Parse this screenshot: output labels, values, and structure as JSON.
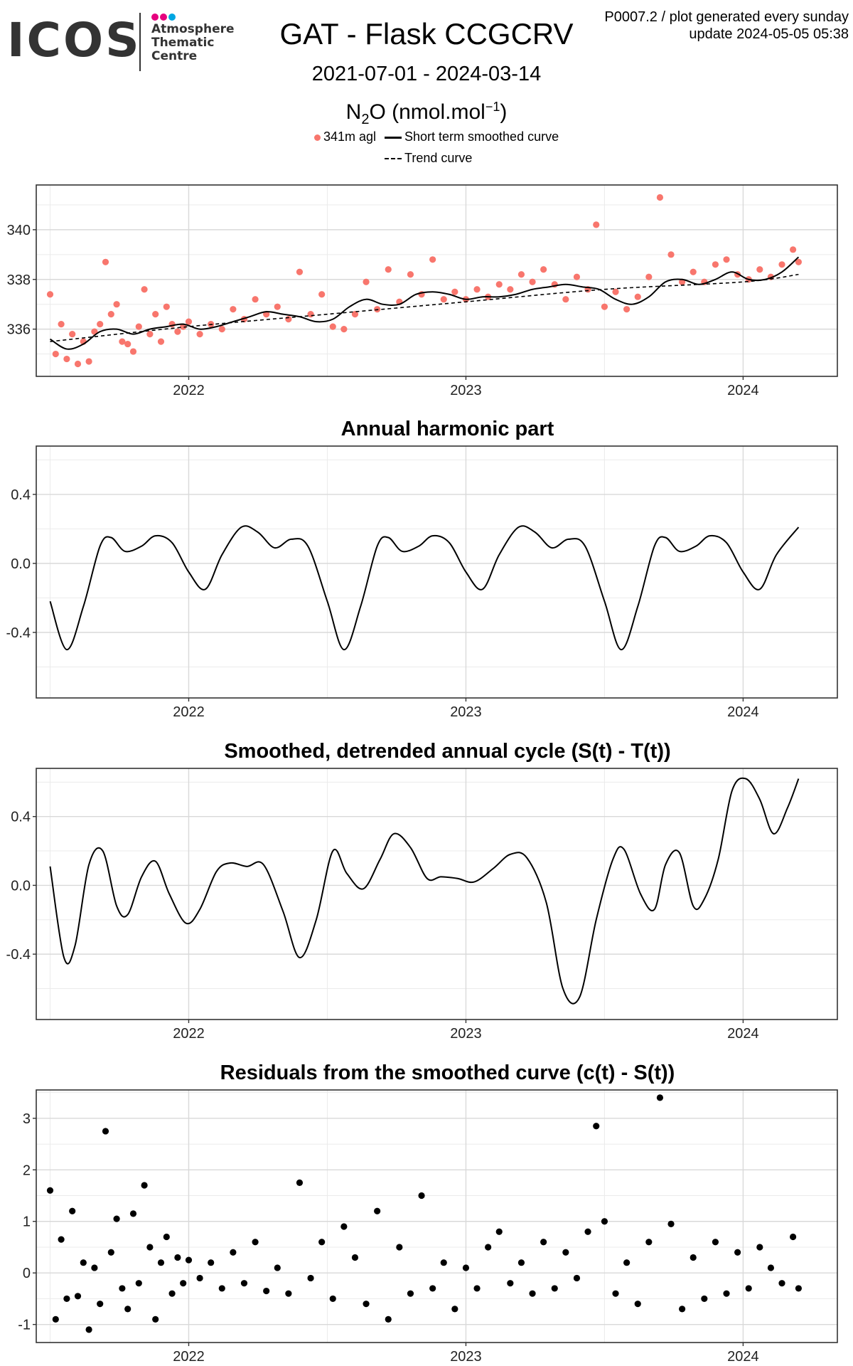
{
  "logo": {
    "wordmark": "ICOS",
    "lines": [
      "Atmosphere",
      "Thematic",
      "Centre"
    ],
    "dot_colors": [
      "#e6007e",
      "#e6007e",
      "#00a6e2"
    ]
  },
  "header": {
    "title": "GAT - Flask CCGCRV",
    "date_range": "2021-07-01 - 2024-03-14",
    "species_main": "N",
    "species_sub": "2",
    "species_o": "O (nmol.mol",
    "species_sup": "−1",
    "species_end": ")",
    "corner_line1": "P0007.2 / plot generated every sunday",
    "corner_line2": "update  2024-05-05 05:38"
  },
  "legend": {
    "points_label": "341m agl",
    "smooth_label": "Short term smoothed curve",
    "trend_label": "Trend curve",
    "point_color": "#f8766d"
  },
  "chart_data": [
    {
      "type": "scatter",
      "title": "",
      "xlabel": "",
      "ylabel": "",
      "x_ticks": [
        "2022",
        "2023",
        "2024"
      ],
      "y_ticks": [
        336,
        338,
        340
      ],
      "xlim": [
        2021.45,
        2024.34
      ],
      "ylim": [
        334.1,
        341.8
      ],
      "point_color": "#f8766d",
      "series": [
        {
          "name": "341m agl",
          "style": "points",
          "x": [
            2021.5,
            2021.52,
            2021.54,
            2021.56,
            2021.58,
            2021.6,
            2021.62,
            2021.64,
            2021.66,
            2021.68,
            2021.7,
            2021.72,
            2021.74,
            2021.76,
            2021.78,
            2021.8,
            2021.82,
            2021.84,
            2021.86,
            2021.88,
            2021.9,
            2021.92,
            2021.94,
            2021.96,
            2021.98,
            2022.0,
            2022.04,
            2022.08,
            2022.12,
            2022.16,
            2022.2,
            2022.24,
            2022.28,
            2022.32,
            2022.36,
            2022.4,
            2022.44,
            2022.48,
            2022.52,
            2022.56,
            2022.6,
            2022.64,
            2022.68,
            2022.72,
            2022.76,
            2022.8,
            2022.84,
            2022.88,
            2022.92,
            2022.96,
            2023.0,
            2023.04,
            2023.08,
            2023.12,
            2023.16,
            2023.2,
            2023.24,
            2023.28,
            2023.32,
            2023.36,
            2023.4,
            2023.44,
            2023.47,
            2023.5,
            2023.54,
            2023.58,
            2023.62,
            2023.66,
            2023.7,
            2023.74,
            2023.78,
            2023.82,
            2023.86,
            2023.9,
            2023.94,
            2023.98,
            2024.02,
            2024.06,
            2024.1,
            2024.14,
            2024.18,
            2024.2
          ],
          "y": [
            337.4,
            335.0,
            336.2,
            334.8,
            335.8,
            334.6,
            335.5,
            334.7,
            335.9,
            336.2,
            338.7,
            336.6,
            337.0,
            335.5,
            335.4,
            335.1,
            336.1,
            337.6,
            335.8,
            336.6,
            335.5,
            336.9,
            336.2,
            335.9,
            336.1,
            336.3,
            335.8,
            336.2,
            336.0,
            336.8,
            336.4,
            337.2,
            336.6,
            336.9,
            336.4,
            338.3,
            336.6,
            337.4,
            336.1,
            336.0,
            336.6,
            337.9,
            336.8,
            338.4,
            337.1,
            338.2,
            337.4,
            338.8,
            337.2,
            337.5,
            337.2,
            337.6,
            337.3,
            337.8,
            337.6,
            338.2,
            337.9,
            338.4,
            337.8,
            337.2,
            338.1,
            337.6,
            340.2,
            336.9,
            337.5,
            336.8,
            337.3,
            338.1,
            341.3,
            339.0,
            337.9,
            338.3,
            337.9,
            338.6,
            338.8,
            338.2,
            338.0,
            338.4,
            338.1,
            338.6,
            339.2,
            338.7
          ]
        },
        {
          "name": "Short term smoothed curve",
          "style": "solid",
          "x": [
            2021.5,
            2021.56,
            2021.62,
            2021.68,
            2021.74,
            2021.8,
            2021.86,
            2021.92,
            2021.98,
            2022.04,
            2022.1,
            2022.16,
            2022.22,
            2022.28,
            2022.34,
            2022.4,
            2022.46,
            2022.52,
            2022.58,
            2022.64,
            2022.7,
            2022.76,
            2022.82,
            2022.88,
            2022.94,
            2023.0,
            2023.06,
            2023.12,
            2023.18,
            2023.24,
            2023.3,
            2023.36,
            2023.42,
            2023.48,
            2023.54,
            2023.6,
            2023.66,
            2023.72,
            2023.78,
            2023.84,
            2023.9,
            2023.96,
            2024.02,
            2024.08,
            2024.14,
            2024.2
          ],
          "y": [
            335.6,
            335.2,
            335.4,
            335.9,
            336.0,
            335.8,
            336.0,
            336.1,
            336.2,
            336.0,
            336.1,
            336.3,
            336.5,
            336.7,
            336.6,
            336.5,
            336.3,
            336.4,
            336.9,
            337.2,
            337.0,
            337.0,
            337.4,
            337.5,
            337.4,
            337.2,
            337.3,
            337.3,
            337.4,
            337.6,
            337.7,
            337.8,
            337.7,
            337.6,
            337.2,
            337.0,
            337.3,
            337.9,
            338.0,
            337.8,
            338.0,
            338.3,
            338.0,
            338.0,
            338.3,
            338.9
          ]
        },
        {
          "name": "Trend curve",
          "style": "dashed",
          "x": [
            2021.5,
            2022.0,
            2022.5,
            2023.0,
            2023.5,
            2024.0,
            2024.2
          ],
          "y": [
            335.5,
            336.1,
            336.6,
            337.1,
            337.6,
            337.9,
            338.2
          ]
        }
      ]
    },
    {
      "type": "line",
      "title": "Annual harmonic part",
      "xlabel": "",
      "ylabel": "",
      "x_ticks": [
        "2022",
        "2023",
        "2024"
      ],
      "y_ticks": [
        -0.4,
        0.0,
        0.4
      ],
      "xlim": [
        2021.45,
        2024.34
      ],
      "ylim": [
        -0.78,
        0.68
      ],
      "series": [
        {
          "name": "",
          "style": "solid",
          "x": [
            2021.5,
            2021.56,
            2021.62,
            2021.68,
            2021.72,
            2021.77,
            2021.83,
            2021.88,
            2021.94,
            2022.0,
            2022.06,
            2022.12,
            2022.19,
            2022.25,
            2022.31,
            2022.37,
            2022.43,
            2022.5,
            2022.56,
            2022.62,
            2022.68,
            2022.72,
            2022.77,
            2022.83,
            2022.88,
            2022.94,
            2023.0,
            2023.06,
            2023.12,
            2023.19,
            2023.25,
            2023.31,
            2023.37,
            2023.43,
            2023.5,
            2023.56,
            2023.62,
            2023.68,
            2023.72,
            2023.77,
            2023.83,
            2023.88,
            2023.94,
            2024.0,
            2024.06,
            2024.12,
            2024.2
          ],
          "y": [
            -0.22,
            -0.5,
            -0.25,
            0.1,
            0.15,
            0.07,
            0.1,
            0.16,
            0.12,
            -0.05,
            -0.15,
            0.05,
            0.21,
            0.18,
            0.09,
            0.14,
            0.1,
            -0.22,
            -0.5,
            -0.25,
            0.1,
            0.15,
            0.07,
            0.1,
            0.16,
            0.12,
            -0.05,
            -0.15,
            0.05,
            0.21,
            0.18,
            0.09,
            0.14,
            0.1,
            -0.22,
            -0.5,
            -0.25,
            0.1,
            0.15,
            0.07,
            0.1,
            0.16,
            0.12,
            -0.05,
            -0.15,
            0.05,
            0.21
          ]
        }
      ]
    },
    {
      "type": "line",
      "title": "Smoothed, detrended annual cycle (S(t) - T(t))",
      "xlabel": "",
      "ylabel": "",
      "x_ticks": [
        "2022",
        "2023",
        "2024"
      ],
      "y_ticks": [
        -0.4,
        0.0,
        0.4
      ],
      "xlim": [
        2021.45,
        2024.34
      ],
      "ylim": [
        -0.78,
        0.68
      ],
      "series": [
        {
          "name": "",
          "style": "solid",
          "x": [
            2021.5,
            2021.55,
            2021.59,
            2021.64,
            2021.69,
            2021.74,
            2021.78,
            2021.83,
            2021.88,
            2021.93,
            2021.99,
            2022.04,
            2022.1,
            2022.15,
            2022.21,
            2022.27,
            2022.34,
            2022.4,
            2022.46,
            2022.52,
            2022.57,
            2022.63,
            2022.69,
            2022.74,
            2022.8,
            2022.86,
            2022.91,
            2022.97,
            2023.03,
            2023.1,
            2023.16,
            2023.22,
            2023.29,
            2023.35,
            2023.41,
            2023.47,
            2023.53,
            2023.57,
            2023.63,
            2023.68,
            2023.72,
            2023.77,
            2023.82,
            2023.86,
            2023.91,
            2023.96,
            2024.01,
            2024.06,
            2024.11,
            2024.16,
            2024.2
          ],
          "y": [
            0.11,
            -0.42,
            -0.35,
            0.12,
            0.2,
            -0.12,
            -0.17,
            0.05,
            0.14,
            -0.05,
            -0.22,
            -0.14,
            0.08,
            0.13,
            0.11,
            0.12,
            -0.15,
            -0.42,
            -0.2,
            0.2,
            0.07,
            -0.02,
            0.15,
            0.3,
            0.22,
            0.04,
            0.05,
            0.04,
            0.02,
            0.1,
            0.18,
            0.16,
            -0.1,
            -0.6,
            -0.65,
            -0.2,
            0.15,
            0.21,
            -0.05,
            -0.14,
            0.12,
            0.19,
            -0.12,
            -0.08,
            0.15,
            0.55,
            0.62,
            0.5,
            0.3,
            0.45,
            0.62
          ]
        }
      ]
    },
    {
      "type": "scatter",
      "title": "Residuals from the smoothed curve (c(t) - S(t))",
      "xlabel": "",
      "ylabel": "",
      "x_ticks": [
        "2022",
        "2023",
        "2024"
      ],
      "y_ticks": [
        -1,
        0,
        1,
        2,
        3
      ],
      "xlim": [
        2021.45,
        2024.34
      ],
      "ylim": [
        -1.35,
        3.55
      ],
      "series": [
        {
          "name": "",
          "style": "points",
          "x": [
            2021.5,
            2021.52,
            2021.54,
            2021.56,
            2021.58,
            2021.6,
            2021.62,
            2021.64,
            2021.66,
            2021.68,
            2021.7,
            2021.72,
            2021.74,
            2021.76,
            2021.78,
            2021.8,
            2021.82,
            2021.84,
            2021.86,
            2021.88,
            2021.9,
            2021.92,
            2021.94,
            2021.96,
            2021.98,
            2022.0,
            2022.04,
            2022.08,
            2022.12,
            2022.16,
            2022.2,
            2022.24,
            2022.28,
            2022.32,
            2022.36,
            2022.4,
            2022.44,
            2022.48,
            2022.52,
            2022.56,
            2022.6,
            2022.64,
            2022.68,
            2022.72,
            2022.76,
            2022.8,
            2022.84,
            2022.88,
            2022.92,
            2022.96,
            2023.0,
            2023.04,
            2023.08,
            2023.12,
            2023.16,
            2023.2,
            2023.24,
            2023.28,
            2023.32,
            2023.36,
            2023.4,
            2023.44,
            2023.47,
            2023.5,
            2023.54,
            2023.58,
            2023.62,
            2023.66,
            2023.7,
            2023.74,
            2023.78,
            2023.82,
            2023.86,
            2023.9,
            2023.94,
            2023.98,
            2024.02,
            2024.06,
            2024.1,
            2024.14,
            2024.18,
            2024.2
          ],
          "y": [
            1.6,
            -0.9,
            0.65,
            -0.5,
            1.2,
            -0.45,
            0.2,
            -1.1,
            0.1,
            -0.6,
            2.75,
            0.4,
            1.05,
            -0.3,
            -0.7,
            1.15,
            -0.2,
            1.7,
            0.5,
            -0.9,
            0.2,
            0.7,
            -0.4,
            0.3,
            -0.2,
            0.25,
            -0.1,
            0.2,
            -0.3,
            0.4,
            -0.2,
            0.6,
            -0.35,
            0.1,
            -0.4,
            1.75,
            -0.1,
            0.6,
            -0.5,
            0.9,
            0.3,
            -0.6,
            1.2,
            -0.9,
            0.5,
            -0.4,
            1.5,
            -0.3,
            0.2,
            -0.7,
            0.1,
            -0.3,
            0.5,
            0.8,
            -0.2,
            0.2,
            -0.4,
            0.6,
            -0.3,
            0.4,
            -0.1,
            0.8,
            2.85,
            1.0,
            -0.4,
            0.2,
            -0.6,
            0.6,
            3.4,
            0.95,
            -0.7,
            0.3,
            -0.5,
            0.6,
            -0.4,
            0.4,
            -0.3,
            0.5,
            0.1,
            -0.2,
            0.7,
            -0.3
          ]
        }
      ]
    }
  ]
}
